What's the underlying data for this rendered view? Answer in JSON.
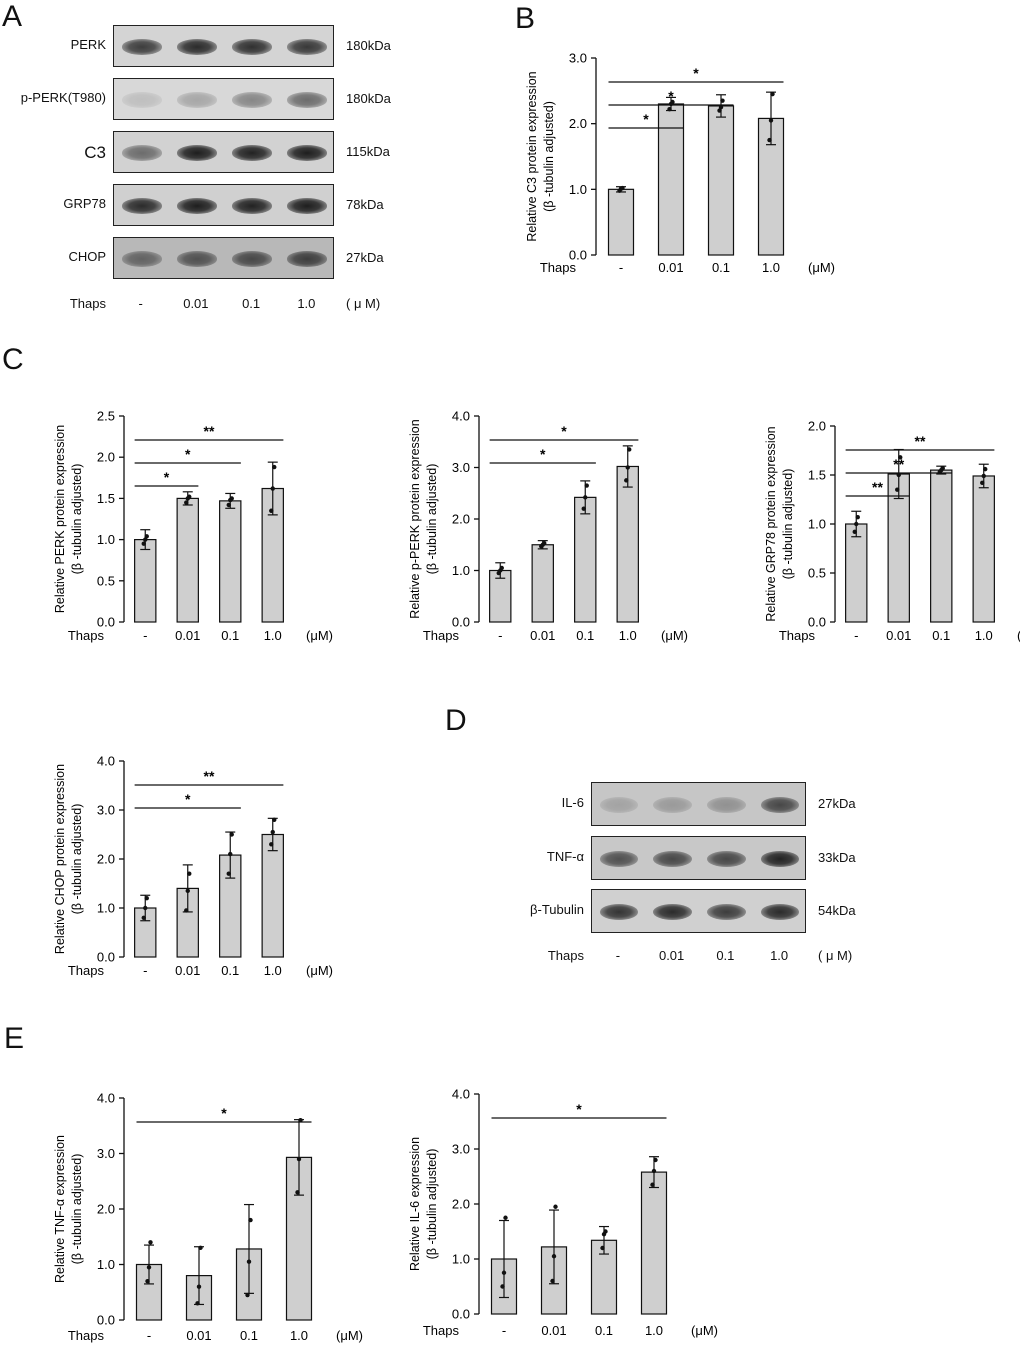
{
  "panels": {
    "A": "A",
    "B": "B",
    "C": "C",
    "D": "D",
    "E": "E"
  },
  "blot_A": {
    "rows": [
      {
        "label": "PERK",
        "kda": "180kDa",
        "intensity": [
          0.75,
          0.85,
          0.82,
          0.78
        ],
        "bg": "#d4d4d4"
      },
      {
        "label": "p-PERK(T980)",
        "kda": "180kDa",
        "intensity": [
          0.05,
          0.18,
          0.35,
          0.5
        ],
        "bg": "#d8d8d8"
      },
      {
        "label": "C3",
        "kda": "115kDa",
        "intensity": [
          0.5,
          0.92,
          0.9,
          0.92
        ],
        "bg": "#d2d2d2"
      },
      {
        "label": "GRP78",
        "kda": "78kDa",
        "intensity": [
          0.85,
          0.92,
          0.9,
          0.92
        ],
        "bg": "#d0d0d0"
      },
      {
        "label": "CHOP",
        "kda": "27kDa",
        "intensity": [
          0.55,
          0.65,
          0.7,
          0.75
        ],
        "bg": "#b8b8b8"
      }
    ],
    "thaps_label": "Thaps",
    "lanes": [
      "-",
      "0.01",
      "0.1",
      "1.0"
    ],
    "unit": "( μ M)"
  },
  "blot_D": {
    "rows": [
      {
        "label": "IL-6",
        "kda": "27kDa",
        "intensity": [
          0.2,
          0.25,
          0.3,
          0.7
        ],
        "bg": "#c6c6c6"
      },
      {
        "label": "TNF-α",
        "kda": "33kDa",
        "intensity": [
          0.65,
          0.7,
          0.7,
          0.9
        ],
        "bg": "#c8c8c8"
      },
      {
        "label": "β-Tubulin",
        "kda": "54kDa",
        "intensity": [
          0.8,
          0.85,
          0.75,
          0.85
        ],
        "bg": "#d0d0d0"
      }
    ],
    "thaps_label": "Thaps",
    "lanes": [
      "-",
      "0.01",
      "0.1",
      "1.0"
    ],
    "unit": "( μ M)"
  },
  "chart_data": [
    {
      "id": "B",
      "type": "bar",
      "categories": [
        "-",
        "0.01",
        "0.1",
        "1.0"
      ],
      "values": [
        1.0,
        2.3,
        2.27,
        2.08
      ],
      "errors": [
        0.04,
        0.1,
        0.17,
        0.4
      ],
      "points": [
        [
          0.98,
          1.01,
          1.02
        ],
        [
          2.22,
          2.3,
          2.33
        ],
        [
          2.2,
          2.25,
          2.35
        ],
        [
          1.75,
          2.05,
          2.45
        ]
      ],
      "ylabel1": "Relative C3 protein expression",
      "ylabel2": "(β -tubulin adjusted)",
      "ylim": [
        0,
        3
      ],
      "yticks": [
        "0.0",
        "1.0",
        "2.0",
        "3.0"
      ],
      "xprefix": "Thaps",
      "xunit": "(μM)",
      "sig": [
        {
          "from": 0,
          "to": 1,
          "label": "*"
        },
        {
          "from": 0,
          "to": 2,
          "label": "*"
        },
        {
          "from": 0,
          "to": 3,
          "label": "*"
        }
      ]
    },
    {
      "id": "C1",
      "type": "bar",
      "categories": [
        "-",
        "0.01",
        "0.1",
        "1.0"
      ],
      "values": [
        1.0,
        1.5,
        1.47,
        1.62
      ],
      "errors": [
        0.12,
        0.08,
        0.09,
        0.32
      ],
      "points": [
        [
          0.95,
          1.0,
          1.04
        ],
        [
          1.45,
          1.5,
          1.52
        ],
        [
          1.42,
          1.48,
          1.5
        ],
        [
          1.35,
          1.62,
          1.88
        ]
      ],
      "ylabel1": "Relative PERK protein expression",
      "ylabel2": "(β -tubulin adjusted)",
      "ylim": [
        0,
        2.5
      ],
      "yticks": [
        "0.0",
        "0.5",
        "1.0",
        "1.5",
        "2.0",
        "2.5"
      ],
      "xprefix": "Thaps",
      "xunit": "(μM)",
      "sig": [
        {
          "from": 0,
          "to": 1,
          "label": "*"
        },
        {
          "from": 0,
          "to": 2,
          "label": "*"
        },
        {
          "from": 0,
          "to": 3,
          "label": "**"
        }
      ]
    },
    {
      "id": "C2",
      "type": "bar",
      "categories": [
        "-",
        "0.01",
        "0.1",
        "1.0"
      ],
      "values": [
        1.0,
        1.5,
        2.42,
        3.02
      ],
      "errors": [
        0.15,
        0.08,
        0.32,
        0.4
      ],
      "points": [
        [
          0.95,
          1.0,
          1.05
        ],
        [
          1.47,
          1.5,
          1.53
        ],
        [
          2.2,
          2.42,
          2.65
        ],
        [
          2.75,
          3.0,
          3.35
        ]
      ],
      "ylabel1": "Relative p-PERK protein expression",
      "ylabel2": "(β -tubulin adjusted)",
      "ylim": [
        0,
        4
      ],
      "yticks": [
        "0.0",
        "1.0",
        "2.0",
        "3.0",
        "4.0"
      ],
      "xprefix": "Thaps",
      "xunit": "(μM)",
      "sig": [
        {
          "from": 0,
          "to": 2,
          "label": "*"
        },
        {
          "from": 0,
          "to": 3,
          "label": "*"
        }
      ]
    },
    {
      "id": "C3",
      "type": "bar",
      "categories": [
        "-",
        "0.01",
        "0.1",
        "1.0"
      ],
      "values": [
        1.0,
        1.51,
        1.55,
        1.49
      ],
      "errors": [
        0.13,
        0.25,
        0.04,
        0.12
      ],
      "points": [
        [
          0.92,
          1.0,
          1.07
        ],
        [
          1.35,
          1.5,
          1.68
        ],
        [
          1.53,
          1.55,
          1.57
        ],
        [
          1.42,
          1.49,
          1.56
        ]
      ],
      "ylabel1": "Relative GRP78 protein expression",
      "ylabel2": "(β -tubulin adjusted)",
      "ylim": [
        0,
        2
      ],
      "yticks": [
        "0.0",
        "0.5",
        "1.0",
        "1.5",
        "2.0"
      ],
      "xprefix": "Thaps",
      "xunit": "(μM)",
      "sig": [
        {
          "from": 0,
          "to": 1,
          "label": "**"
        },
        {
          "from": 0,
          "to": 2,
          "label": "**"
        },
        {
          "from": 0,
          "to": 3,
          "label": "**"
        }
      ]
    },
    {
      "id": "C4",
      "type": "bar",
      "categories": [
        "-",
        "0.01",
        "0.1",
        "1.0"
      ],
      "values": [
        1.0,
        1.4,
        2.08,
        2.5
      ],
      "errors": [
        0.26,
        0.48,
        0.47,
        0.33
      ],
      "points": [
        [
          0.8,
          1.0,
          1.2
        ],
        [
          0.95,
          1.35,
          1.7
        ],
        [
          1.7,
          2.1,
          2.5
        ],
        [
          2.3,
          2.55,
          2.8
        ]
      ],
      "ylabel1": "Relative CHOP protein expression",
      "ylabel2": "(β -tubulin adjusted)",
      "ylim": [
        0,
        4
      ],
      "yticks": [
        "0.0",
        "1.0",
        "2.0",
        "3.0",
        "4.0"
      ],
      "xprefix": "Thaps",
      "xunit": "(μM)",
      "sig": [
        {
          "from": 0,
          "to": 2,
          "label": "*"
        },
        {
          "from": 0,
          "to": 3,
          "label": "**"
        }
      ]
    },
    {
      "id": "E1",
      "type": "bar",
      "categories": [
        "-",
        "0.01",
        "0.1",
        "1.0"
      ],
      "values": [
        1.0,
        0.8,
        1.28,
        2.93
      ],
      "errors": [
        0.35,
        0.52,
        0.8,
        0.68
      ],
      "points": [
        [
          0.7,
          0.95,
          1.4
        ],
        [
          0.3,
          0.6,
          1.3
        ],
        [
          0.45,
          1.05,
          1.8
        ],
        [
          2.3,
          2.9,
          3.6
        ]
      ],
      "ylabel1": "Relative TNF-α expression",
      "ylabel2": "(β -tubulin adjusted)",
      "ylim": [
        0,
        4
      ],
      "yticks": [
        "0.0",
        "1.0",
        "2.0",
        "3.0",
        "4.0"
      ],
      "xprefix": "Thaps",
      "xunit": "(μM)",
      "sig": [
        {
          "from": 0,
          "to": 3,
          "label": "*"
        }
      ]
    },
    {
      "id": "E2",
      "type": "bar",
      "categories": [
        "-",
        "0.01",
        "0.1",
        "1.0"
      ],
      "values": [
        1.0,
        1.22,
        1.34,
        2.58
      ],
      "errors": [
        0.7,
        0.67,
        0.25,
        0.28
      ],
      "points": [
        [
          0.5,
          0.75,
          1.75
        ],
        [
          0.6,
          1.05,
          1.95
        ],
        [
          1.2,
          1.45,
          1.5
        ],
        [
          2.35,
          2.6,
          2.8
        ]
      ],
      "ylabel1": "Relative IL-6 expression",
      "ylabel2": "(β -tubulin adjusted)",
      "ylim": [
        0,
        4
      ],
      "yticks": [
        "0.0",
        "1.0",
        "2.0",
        "3.0",
        "4.0"
      ],
      "xprefix": "Thaps",
      "xunit": "(μM)",
      "sig": [
        {
          "from": 0,
          "to": 3,
          "label": "*"
        }
      ]
    }
  ]
}
